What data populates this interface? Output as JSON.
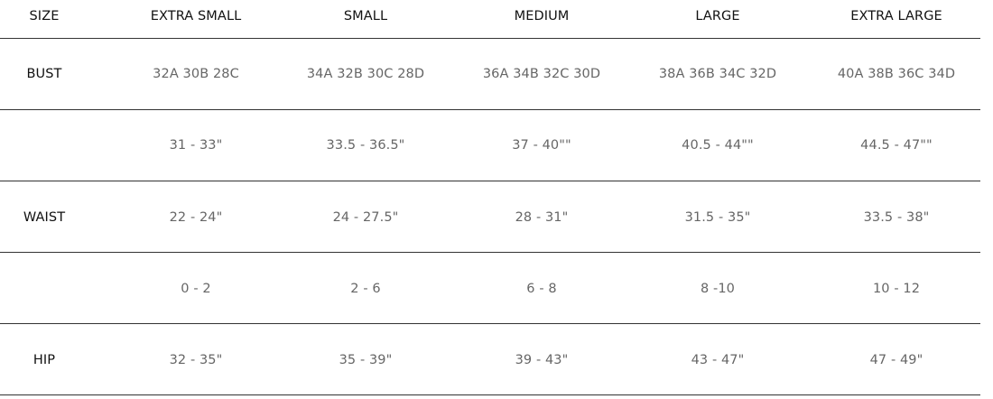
{
  "table": {
    "headers": [
      "SIZE",
      "EXTRA SMALL",
      "SMALL",
      "MEDIUM",
      "LARGE",
      "EXTRA LARGE"
    ],
    "rows": [
      {
        "label": "BUST",
        "values": [
          "32A 30B 28C",
          "34A 32B 30C 28D",
          "36A 34B 32C 30D",
          "38A 36B 34C 32D",
          "40A 38B 36C 34D"
        ]
      },
      {
        "label": "",
        "values": [
          "31 - 33\"",
          "33.5 - 36.5\"",
          "37 - 40\"\"",
          "40.5 - 44\"\"",
          "44.5 - 47\"\""
        ]
      },
      {
        "label": "WAIST",
        "values": [
          "22 - 24\"",
          "24 - 27.5\"",
          "28 - 31\"",
          "31.5 - 35\"",
          "33.5 - 38\""
        ]
      },
      {
        "label": "",
        "values": [
          "0 - 2",
          "2 - 6",
          "6 - 8",
          "8 -10",
          "10 - 12"
        ]
      },
      {
        "label": "HIP",
        "values": [
          "32 - 35\"",
          "35 - 39\"",
          "39 - 43\"",
          "43 - 47\"",
          "47 - 49\""
        ]
      }
    ]
  }
}
